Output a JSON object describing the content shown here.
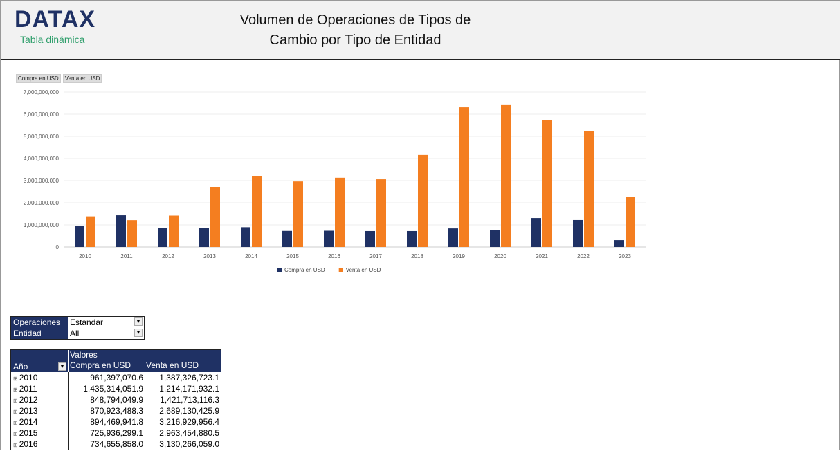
{
  "header": {
    "logo": "DATAX",
    "subtitle": "Tabla dinámica",
    "title_line1": "Volumen de Operaciones de Tipos de",
    "title_line2": "Cambio por Tipo de Entidad"
  },
  "field_buttons": [
    "Compra en USD",
    "Venta en USD"
  ],
  "colors": {
    "compra": "#1f3164",
    "venta": "#f47e20"
  },
  "chart_data": {
    "type": "bar",
    "categories": [
      "2010",
      "2011",
      "2012",
      "2013",
      "2014",
      "2015",
      "2016",
      "2017",
      "2018",
      "2019",
      "2020",
      "2021",
      "2022",
      "2023"
    ],
    "series": [
      {
        "name": "Compra en USD",
        "values": [
          961397070.6,
          1435314051.9,
          848794049.9,
          870923488.3,
          894469941.8,
          725936299.1,
          734655858.0,
          720000000,
          720000000,
          840000000,
          750000000,
          1310000000,
          1220000000,
          310000000
        ]
      },
      {
        "name": "Venta en USD",
        "values": [
          1387326723.1,
          1214171932.1,
          1421713116.3,
          2689130425.9,
          3216929956.4,
          2963454880.5,
          3130266059.0,
          3060000000,
          4160000000,
          6310000000,
          6410000000,
          5720000000,
          5220000000,
          2250000000
        ]
      }
    ],
    "yticks": [
      "0",
      "1,000,000,000",
      "2,000,000,000",
      "3,000,000,000",
      "4,000,000,000",
      "5,000,000,000",
      "6,000,000,000",
      "7,000,000,000"
    ],
    "ylim": [
      0,
      7000000000
    ],
    "grid": true,
    "legend": "bottom"
  },
  "filters": [
    {
      "label": "Operaciones",
      "value": "Estandar"
    },
    {
      "label": "Entidad",
      "value": "All"
    }
  ],
  "pivot": {
    "values_label": "Valores",
    "row_header": "Año",
    "col1": "Compra en USD",
    "col2": "Venta en USD",
    "rows": [
      {
        "year": "2010",
        "compra": "961,397,070.6",
        "venta": "1,387,326,723.1"
      },
      {
        "year": "2011",
        "compra": "1,435,314,051.9",
        "venta": "1,214,171,932.1"
      },
      {
        "year": "2012",
        "compra": "848,794,049.9",
        "venta": "1,421,713,116.3"
      },
      {
        "year": "2013",
        "compra": "870,923,488.3",
        "venta": "2,689,130,425.9"
      },
      {
        "year": "2014",
        "compra": "894,469,941.8",
        "venta": "3,216,929,956.4"
      },
      {
        "year": "2015",
        "compra": "725,936,299.1",
        "venta": "2,963,454,880.5"
      },
      {
        "year": "2016",
        "compra": "734,655,858.0",
        "venta": "3,130,266,059.0"
      }
    ]
  }
}
